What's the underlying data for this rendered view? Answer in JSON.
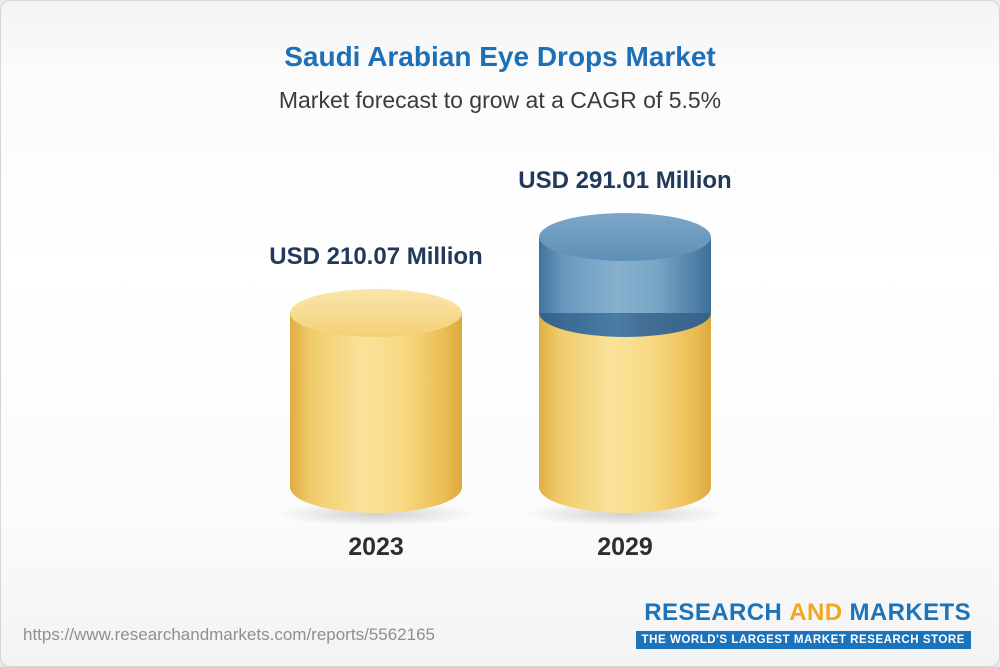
{
  "title": "Saudi Arabian Eye Drops Market",
  "subtitle": "Market forecast to grow at a CAGR of 5.5%",
  "chart_data": {
    "type": "bar",
    "title": "Saudi Arabian Eye Drops Market",
    "subtitle": "Market forecast to grow at a CAGR of 5.5%",
    "categories": [
      "2023",
      "2029"
    ],
    "values": [
      210.07,
      291.01
    ],
    "value_labels": [
      "USD 210.07 Million",
      "USD 291.01 Million"
    ],
    "unit": "USD Million",
    "cagr_percent": 5.5,
    "colors": {
      "base_segment": "#f3cd6e",
      "growth_segment": "#5e8fb6"
    },
    "legend_position": "none",
    "grid": false
  },
  "footer": {
    "url": "https://www.researchandmarkets.com/reports/5562165",
    "logo": {
      "word_research": "RESEARCH",
      "word_and": "AND",
      "word_markets": "MARKETS",
      "tagline": "THE WORLD'S LARGEST MARKET RESEARCH STORE"
    }
  }
}
